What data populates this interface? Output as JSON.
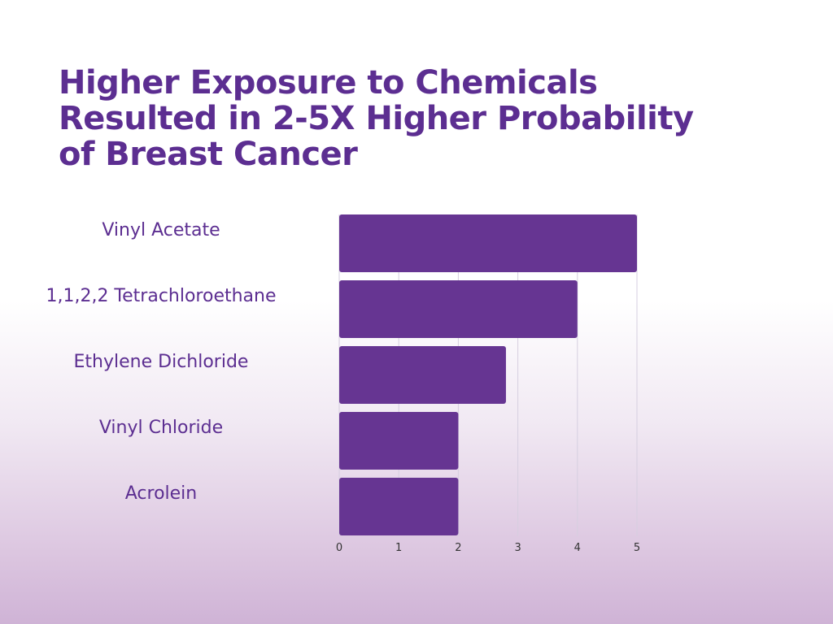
{
  "title_lines": [
    "Higher Exposure to Chemicals",
    "Resulted in 2-5X Higher Probability",
    "of Breast Cancer"
  ],
  "colors": {
    "bar": "#663592",
    "title": "#5c2e91",
    "label": "#5c2e91"
  },
  "chart_data": {
    "type": "bar",
    "orientation": "horizontal",
    "title": "Higher Exposure to Chemicals Resulted in 2-5X Higher Probability of Breast Cancer",
    "categories": [
      "Vinyl Acetate",
      "1,1,2,2 Tetrachloroethane",
      "Ethylene Dichloride",
      "Vinyl Chloride",
      "Acrolein"
    ],
    "values": [
      5,
      4,
      2.8,
      2,
      2
    ],
    "xticks": [
      0,
      1,
      2,
      3,
      4,
      5
    ],
    "xlim": [
      0,
      5
    ],
    "xlabel": "",
    "ylabel": "",
    "grid": "vertical",
    "legend": "none"
  }
}
